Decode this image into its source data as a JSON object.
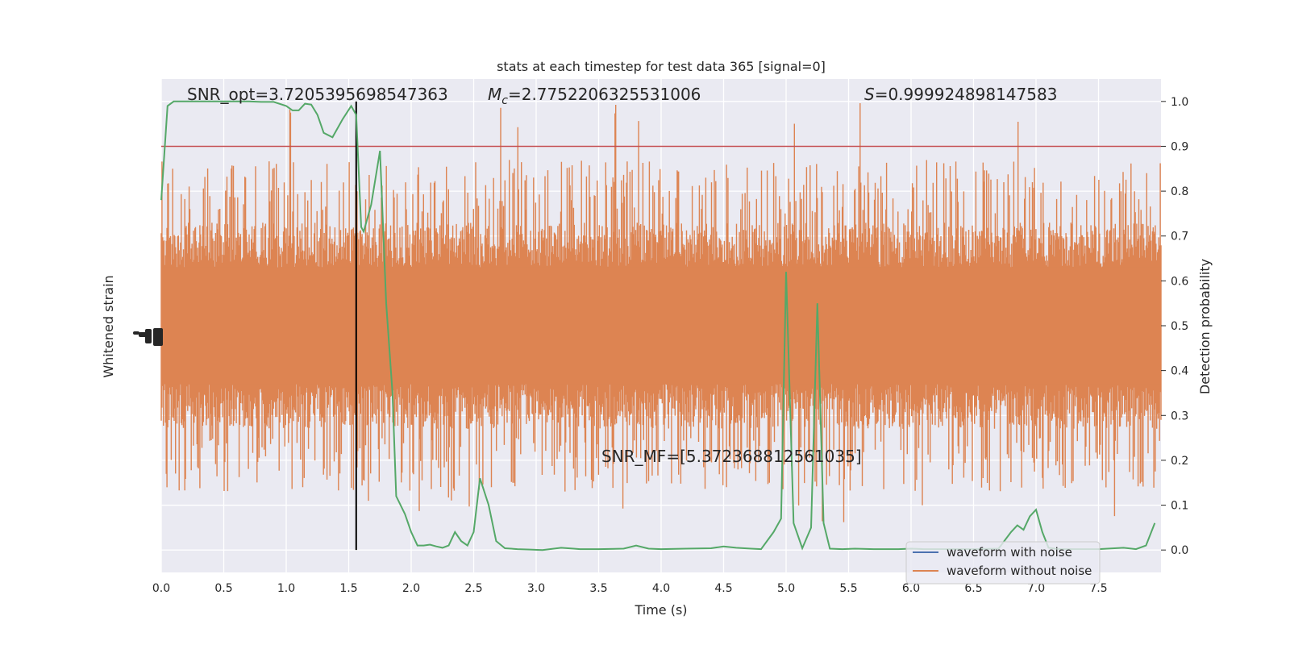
{
  "chart_data": {
    "type": "line",
    "title": "stats at each timestep for test data 365 [signal=0]",
    "xlabel": "Time (s)",
    "ylabel_left": "Whitened strain",
    "ylabel_right": "Detection probability",
    "xlim": [
      0,
      8
    ],
    "ylim_right": [
      -0.05,
      1.05
    ],
    "x_ticks": [
      0.0,
      0.5,
      1.0,
      1.5,
      2.0,
      2.5,
      3.0,
      3.5,
      4.0,
      4.5,
      5.0,
      5.5,
      6.0,
      6.5,
      7.0,
      7.5
    ],
    "x_tick_labels": [
      "0.0",
      "0.5",
      "1.0",
      "1.5",
      "2.0",
      "2.5",
      "3.0",
      "3.5",
      "4.0",
      "4.5",
      "5.0",
      "5.5",
      "6.0",
      "6.5",
      "7.0",
      "7.5"
    ],
    "y_right_ticks": [
      0.0,
      0.1,
      0.2,
      0.3,
      0.4,
      0.5,
      0.6,
      0.7,
      0.8,
      0.9,
      1.0
    ],
    "y_right_tick_labels": [
      "0.0",
      "0.1",
      "0.2",
      "0.3",
      "0.4",
      "0.5",
      "0.6",
      "0.7",
      "0.8",
      "0.9",
      "1.0"
    ],
    "grid": true,
    "legend_position": "bottom-right",
    "annotations": {
      "snr_opt": "SNR_opt=3.7205395698547363",
      "mc_symbol": "M",
      "mc_subscript": "c",
      "mc_value": "=2.7752206325531006",
      "s_symbol": "S",
      "s_value": "=0.999924898147583",
      "snr_mf": "SNR_MF=[5.372368812561035]"
    },
    "threshold": {
      "value": 0.9,
      "color": "#c44e52"
    },
    "vertical_marker": {
      "x": 1.56,
      "color": "#000000"
    },
    "series": [
      {
        "name": "waveform with noise",
        "color": "#4c72b0",
        "axis": "left",
        "note_values": "hidden beneath orange trace"
      },
      {
        "name": "waveform without noise",
        "color": "#dd8452",
        "axis": "left",
        "envelope_right_axis_equiv": {
          "core_low": 0.37,
          "core_high": 0.63,
          "spike_max": 1.0,
          "spike_min": 0.06
        }
      },
      {
        "name": "detection probability",
        "color": "#55a868",
        "axis": "right",
        "x": [
          0.0,
          0.05,
          0.1,
          0.2,
          0.3,
          0.4,
          0.5,
          0.6,
          0.7,
          0.8,
          0.9,
          1.0,
          1.05,
          1.1,
          1.15,
          1.2,
          1.25,
          1.3,
          1.37,
          1.45,
          1.52,
          1.56,
          1.6,
          1.62,
          1.68,
          1.75,
          1.8,
          1.85,
          1.88,
          1.95,
          2.0,
          2.05,
          2.1,
          2.15,
          2.2,
          2.25,
          2.3,
          2.35,
          2.4,
          2.45,
          2.5,
          2.55,
          2.62,
          2.68,
          2.75,
          2.8,
          2.85,
          2.95,
          3.05,
          3.2,
          3.3,
          3.35,
          3.5,
          3.7,
          3.8,
          3.9,
          4.0,
          4.2,
          4.4,
          4.5,
          4.6,
          4.72,
          4.8,
          4.9,
          4.96,
          5.0,
          5.06,
          5.13,
          5.2,
          5.25,
          5.3,
          5.35,
          5.45,
          5.55,
          5.7,
          5.9,
          6.0,
          6.1,
          6.3,
          6.5,
          6.7,
          6.8,
          6.85,
          6.9,
          6.95,
          7.0,
          7.05,
          7.1,
          7.15,
          7.2,
          7.3,
          7.5,
          7.7,
          7.8,
          7.88,
          7.95
        ],
        "values": [
          0.78,
          0.99,
          1.0,
          1.0,
          1.0,
          1.0,
          1.0,
          1.0,
          1.0,
          0.999,
          0.999,
          0.99,
          0.98,
          0.98,
          0.995,
          0.993,
          0.97,
          0.93,
          0.92,
          0.96,
          0.99,
          0.97,
          0.72,
          0.71,
          0.77,
          0.89,
          0.55,
          0.35,
          0.12,
          0.08,
          0.04,
          0.01,
          0.01,
          0.012,
          0.008,
          0.005,
          0.01,
          0.04,
          0.02,
          0.01,
          0.04,
          0.16,
          0.1,
          0.02,
          0.004,
          0.003,
          0.002,
          0.001,
          0.0,
          0.005,
          0.003,
          0.002,
          0.002,
          0.003,
          0.01,
          0.003,
          0.002,
          0.003,
          0.004,
          0.008,
          0.005,
          0.003,
          0.002,
          0.04,
          0.07,
          0.62,
          0.06,
          0.004,
          0.05,
          0.55,
          0.06,
          0.003,
          0.002,
          0.003,
          0.002,
          0.002,
          0.003,
          0.002,
          0.002,
          0.002,
          0.003,
          0.04,
          0.055,
          0.045,
          0.075,
          0.09,
          0.04,
          0.005,
          0.003,
          0.002,
          0.002,
          0.002,
          0.005,
          0.002,
          0.01,
          0.06
        ]
      }
    ]
  }
}
